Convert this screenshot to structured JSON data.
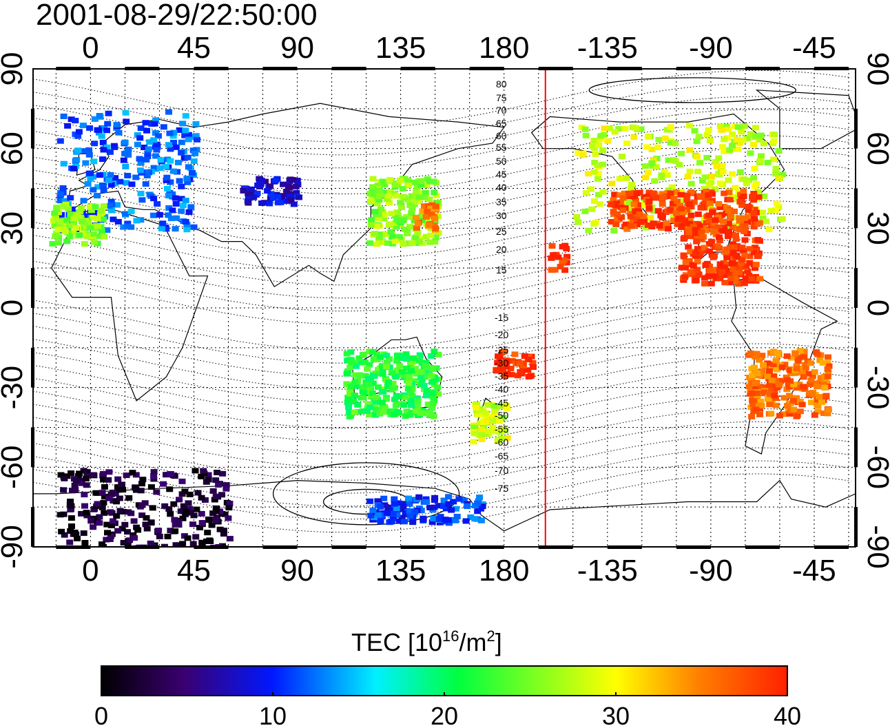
{
  "title": "2001-08-29/22:50:00",
  "colorbar": {
    "label_main": "TEC  [10",
    "label_exp1": "16",
    "label_mid": "/m",
    "label_exp2": "2",
    "label_end": "]",
    "min": 0,
    "max": 40,
    "ticks": [
      "0",
      "10",
      "20",
      "30",
      "40"
    ],
    "colormap": [
      "#000000",
      "#3a0070",
      "#0018ff",
      "#00f0ff",
      "#00ff40",
      "#ffff00",
      "#ff2000"
    ]
  },
  "axes": {
    "lon_labels_top": [
      "0",
      "45",
      "90",
      "135",
      "180",
      "-135",
      "-90",
      "-45"
    ],
    "lon_labels_bottom": [
      "0",
      "45",
      "90",
      "135",
      "180",
      "-135",
      "-90",
      "-45"
    ],
    "lat_labels_left": [
      "90",
      "60",
      "30",
      "0",
      "-30",
      "-60",
      "-90"
    ],
    "lat_labels_right": [
      "90",
      "60",
      "30",
      "0",
      "-30",
      "-60",
      "-90"
    ],
    "lon_values": [
      0,
      45,
      90,
      135,
      180,
      225,
      270,
      315
    ],
    "lat_values": [
      90,
      60,
      30,
      0,
      -30,
      -60,
      -90
    ]
  },
  "contour_labels_north": [
    "80",
    "75",
    "70",
    "65",
    "60",
    "55",
    "50",
    "45",
    "40",
    "35",
    "30",
    "25",
    "20",
    "15"
  ],
  "contour_labels_south": [
    "-15",
    "-20",
    "-25",
    "-30",
    "-35",
    "-40",
    "-45",
    "-50",
    "-55",
    "-60",
    "-65",
    "-70",
    "-75"
  ],
  "terminator_color": "#ff0000",
  "terminator_lon": 198,
  "chart_data": {
    "type": "heatmap",
    "title": "2001-08-29/22:50:00",
    "xlabel": "",
    "ylabel": "",
    "xlim": [
      -25,
      333
    ],
    "ylim": [
      -90,
      90
    ],
    "colorbar_range": [
      0,
      40
    ],
    "regions": [
      {
        "lon": [
          -15,
          45
        ],
        "lat": [
          30,
          75
        ],
        "tec": 12
      },
      {
        "lon": [
          -18,
          5
        ],
        "lat": [
          25,
          40
        ],
        "tec": 26
      },
      {
        "lon": [
          65,
          90
        ],
        "lat": [
          40,
          50
        ],
        "tec": 8
      },
      {
        "lon": [
          120,
          150
        ],
        "lat": [
          25,
          50
        ],
        "tec": 26
      },
      {
        "lon": [
          140,
          150
        ],
        "lat": [
          30,
          40
        ],
        "tec": 35
      },
      {
        "lon": [
          210,
          300
        ],
        "lat": [
          30,
          70
        ],
        "tec": 28
      },
      {
        "lon": [
          225,
          290
        ],
        "lat": [
          30,
          45
        ],
        "tec": 38
      },
      {
        "lon": [
          255,
          290
        ],
        "lat": [
          10,
          30
        ],
        "tec": 39
      },
      {
        "lon": [
          199,
          206
        ],
        "lat": [
          15,
          25
        ],
        "tec": 39
      },
      {
        "lon": [
          110,
          150
        ],
        "lat": [
          -40,
          -15
        ],
        "tec": 22
      },
      {
        "lon": [
          165,
          180
        ],
        "lat": [
          -50,
          -35
        ],
        "tec": 28
      },
      {
        "lon": [
          175,
          192
        ],
        "lat": [
          -25,
          -15
        ],
        "tec": 39
      },
      {
        "lon": [
          285,
          320
        ],
        "lat": [
          -40,
          -15
        ],
        "tec": 36
      },
      {
        "lon": [
          -15,
          60
        ],
        "lat": [
          -90,
          -60
        ],
        "tec": 2
      },
      {
        "lon": [
          120,
          170
        ],
        "lat": [
          -80,
          -70
        ],
        "tec": 11
      }
    ]
  }
}
